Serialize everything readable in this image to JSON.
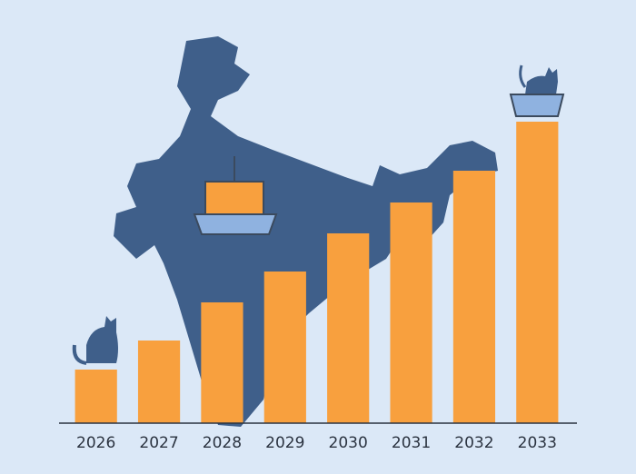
{
  "chart_data": {
    "type": "bar",
    "categories": [
      "2026",
      "2027",
      "2028",
      "2029",
      "2030",
      "2031",
      "2032",
      "2033"
    ],
    "values": [
      59,
      91,
      133,
      167,
      209,
      243,
      278,
      332
    ],
    "color": "#f8a03e",
    "ylim": [
      0,
      466
    ]
  }
}
